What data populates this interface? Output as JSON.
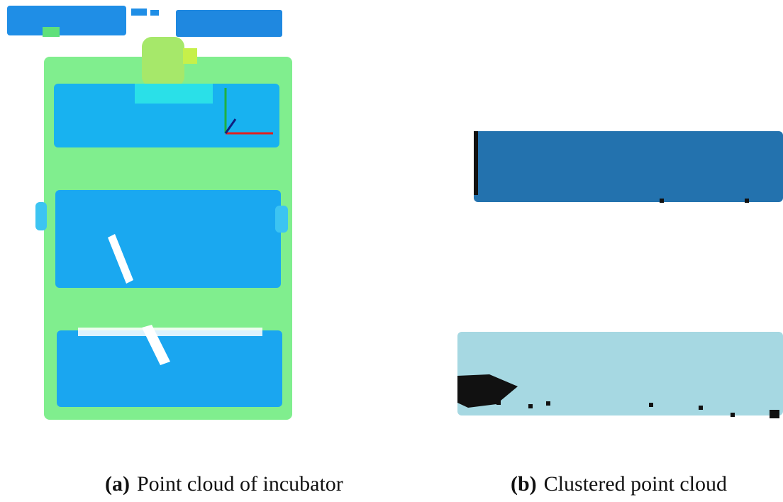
{
  "captions": [
    {
      "label": "(a)",
      "text": "Point cloud of incubator"
    },
    {
      "label": "(b)",
      "text": "Clustered point cloud"
    }
  ]
}
